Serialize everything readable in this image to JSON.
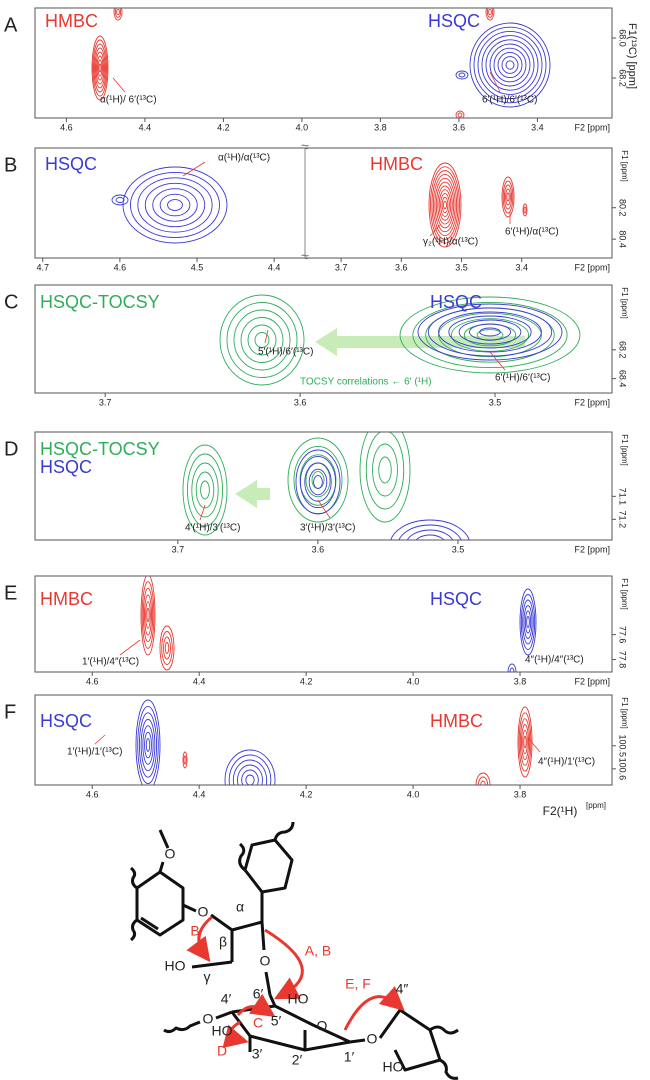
{
  "panels": [
    {
      "letter": "A",
      "labels": [
        "HMBC",
        "HSQC"
      ],
      "annotations": [
        "α(¹H)/ 6′(¹³C)",
        "6′(¹H)/6′(¹³C)"
      ],
      "x_axis_label": "F2 [ppm]",
      "y_axis_label": "F1(¹³C) [ppm]",
      "xlim": [
        4.68,
        3.21
      ],
      "xticks": [
        4.6,
        4.4,
        4.2,
        {
          "value": 4,
          "label": "4.0"
        },
        3.8,
        3.6,
        3.4
      ],
      "ylim": [
        67.85,
        68.4
      ],
      "yticks": [
        {
          "value": 68,
          "label": "68.0"
        },
        68.2
      ]
    },
    {
      "letter": "B",
      "labels": [
        "HSQC",
        "HMBC"
      ],
      "annotations": [
        "α(¹H)/α(¹³C)",
        "γ₂(¹H)/α(¹³C)",
        "6′(¹H)/α(¹³C)"
      ],
      "x_axis_label": "F2 [ppm]",
      "y_axis_label": "F1 [ppm]",
      "x_segments": [
        {
          "xlim": [
            4.71,
            4.36
          ],
          "xticks": [
            4.7,
            4.6,
            4.5,
            4.4
          ]
        },
        {
          "xlim": [
            3.76,
            3.25
          ],
          "xticks": [
            3.7,
            3.6,
            3.5,
            3.4
          ]
        }
      ],
      "ylim": [
        79.82,
        80.52
      ],
      "yticks": [
        80.2,
        80.4
      ]
    },
    {
      "letter": "C",
      "labels": [
        "HSQC-TOCSY",
        "HSQC"
      ],
      "annotations": [
        "5′(¹H)/6′(¹³C)",
        "TOCSY correlations ← 6′ (¹H)",
        "6′(¹H)/6′(¹³C)"
      ],
      "x_axis_label": "F2 [ppm]",
      "y_axis_label": "F1 [ppm]",
      "xlim": [
        3.736,
        3.44
      ],
      "xticks": [
        3.7,
        3.6,
        3.5
      ],
      "ylim": [
        67.75,
        68.5
      ],
      "yticks": [
        68.2,
        68.4
      ]
    },
    {
      "letter": "D",
      "labels": [
        "HSQC-TOCSY",
        "HSQC"
      ],
      "annotations": [
        "4′(¹H)/3′(¹³C)",
        "3′(¹H)/3′(¹³C)"
      ],
      "x_axis_label": "F2 [ppm]",
      "y_axis_label": "F1 [ppm]",
      "xlim": [
        3.802,
        3.39
      ],
      "xticks": [
        3.7,
        3.6,
        3.5
      ],
      "ylim": [
        70.82,
        71.29
      ],
      "yticks": [
        71.1,
        71.2
      ]
    },
    {
      "letter": "E",
      "labels": [
        "HMBC",
        "HSQC"
      ],
      "annotations": [
        "1′(¹H)/4″(¹³C)",
        "4″(¹H)/4″(¹³C)"
      ],
      "x_axis_label": "F2 [ppm]",
      "y_axis_label": "F1 [ppm]",
      "xlim": [
        4.707,
        3.628
      ],
      "xticks": [
        4.6,
        4.4,
        4.2,
        {
          "value": 4,
          "label": "4.0"
        },
        3.8
      ],
      "ylim": [
        77.13,
        77.9
      ],
      "yticks": [
        77.6,
        77.8
      ]
    },
    {
      "letter": "F",
      "labels": [
        "HSQC",
        "HMBC"
      ],
      "annotations": [
        "1′(¹H)/1′(¹³C)",
        "4″(¹H)/1′(¹³C)"
      ],
      "x_axis_label": "F2(¹H)",
      "x_unit": "[ppm]",
      "y_axis_label": "F1 [ppm]",
      "xlim": [
        4.707,
        3.628
      ],
      "xticks": [
        4.6,
        4.4,
        4.2,
        {
          "value": 4,
          "label": "4.0"
        },
        3.8
      ],
      "ylim": [
        100.28,
        100.67
      ],
      "yticks": [
        100.5,
        100.6
      ]
    }
  ],
  "structure": {
    "labels": [
      "O",
      "O",
      "B",
      "β",
      "α",
      "HO",
      "γ",
      "O",
      "A, B",
      "6′",
      "HO",
      "4′",
      "O",
      "C",
      "5′",
      "O",
      "D",
      "3′",
      "2′",
      "1′",
      "O",
      "E, F",
      "4″",
      "HO",
      "HO"
    ]
  }
}
